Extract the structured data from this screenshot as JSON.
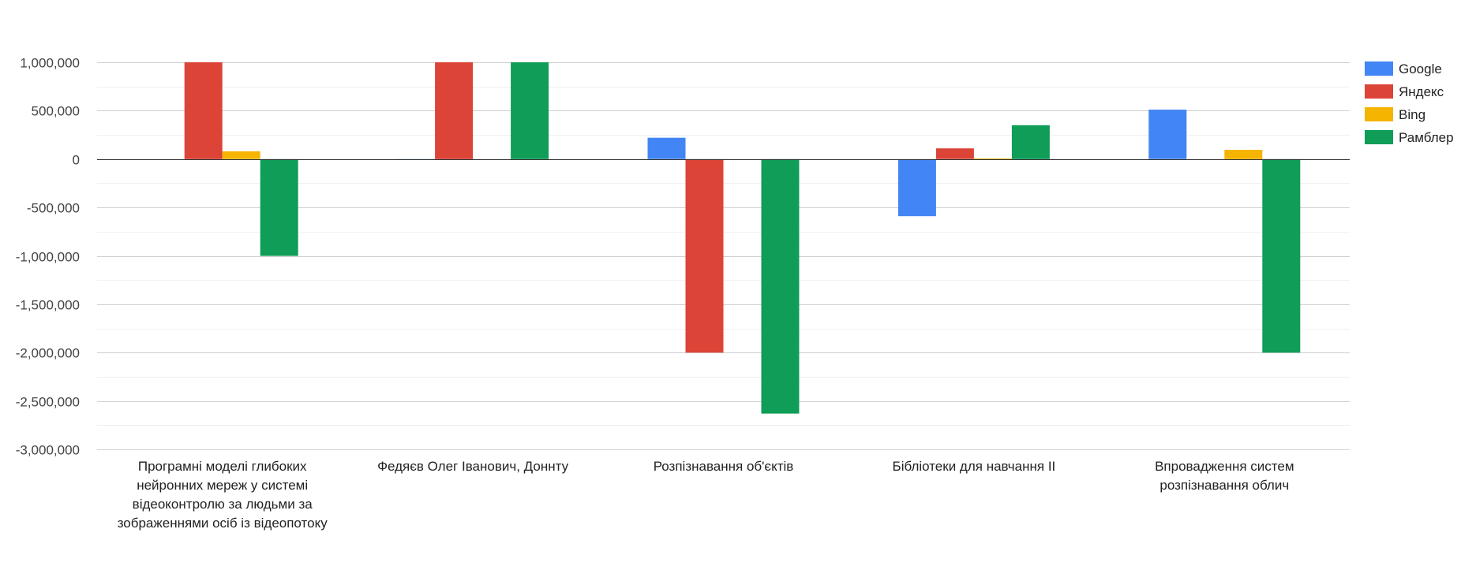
{
  "chart_data": {
    "type": "bar",
    "title": "",
    "xlabel": "",
    "ylabel": "",
    "ylim": [
      -3000000,
      1000000
    ],
    "yticks": [
      1000000,
      500000,
      0,
      -500000,
      -1000000,
      -1500000,
      -2000000,
      -2500000,
      -3000000
    ],
    "ytick_labels": [
      "1,000,000",
      "500,000",
      "0",
      "-500,000",
      "-1,000,000",
      "-1,500,000",
      "-2,000,000",
      "-2,500,000",
      "-3,000,000"
    ],
    "categories": [
      [
        "Програмні моделі глибоких",
        "нейронних мереж у системі",
        "відеоконтролю за людьми за",
        "зображеннями осіб із відеопотоку"
      ],
      [
        "Федяєв Олег Іванович, Доннту"
      ],
      [
        "Розпізнавання об'єктів"
      ],
      [
        "Бібліотеки для навчання ІІ"
      ],
      [
        "Впровадження систем",
        "розпізнавання облич"
      ]
    ],
    "series": [
      {
        "name": "Google",
        "color": "#4285f4",
        "values": [
          0,
          -10000,
          220000,
          -590000,
          510000
        ]
      },
      {
        "name": "Яндекс",
        "color": "#db4437",
        "values": [
          1000000,
          1000000,
          -2000000,
          110000,
          0
        ]
      },
      {
        "name": "Bing",
        "color": "#f4b400",
        "values": [
          80000,
          0,
          0,
          5000,
          95000
        ]
      },
      {
        "name": "Рамблер",
        "color": "#0f9d58",
        "values": [
          -1000000,
          1000000,
          -2630000,
          350000,
          -2000000
        ]
      }
    ],
    "legend_position": "right"
  }
}
